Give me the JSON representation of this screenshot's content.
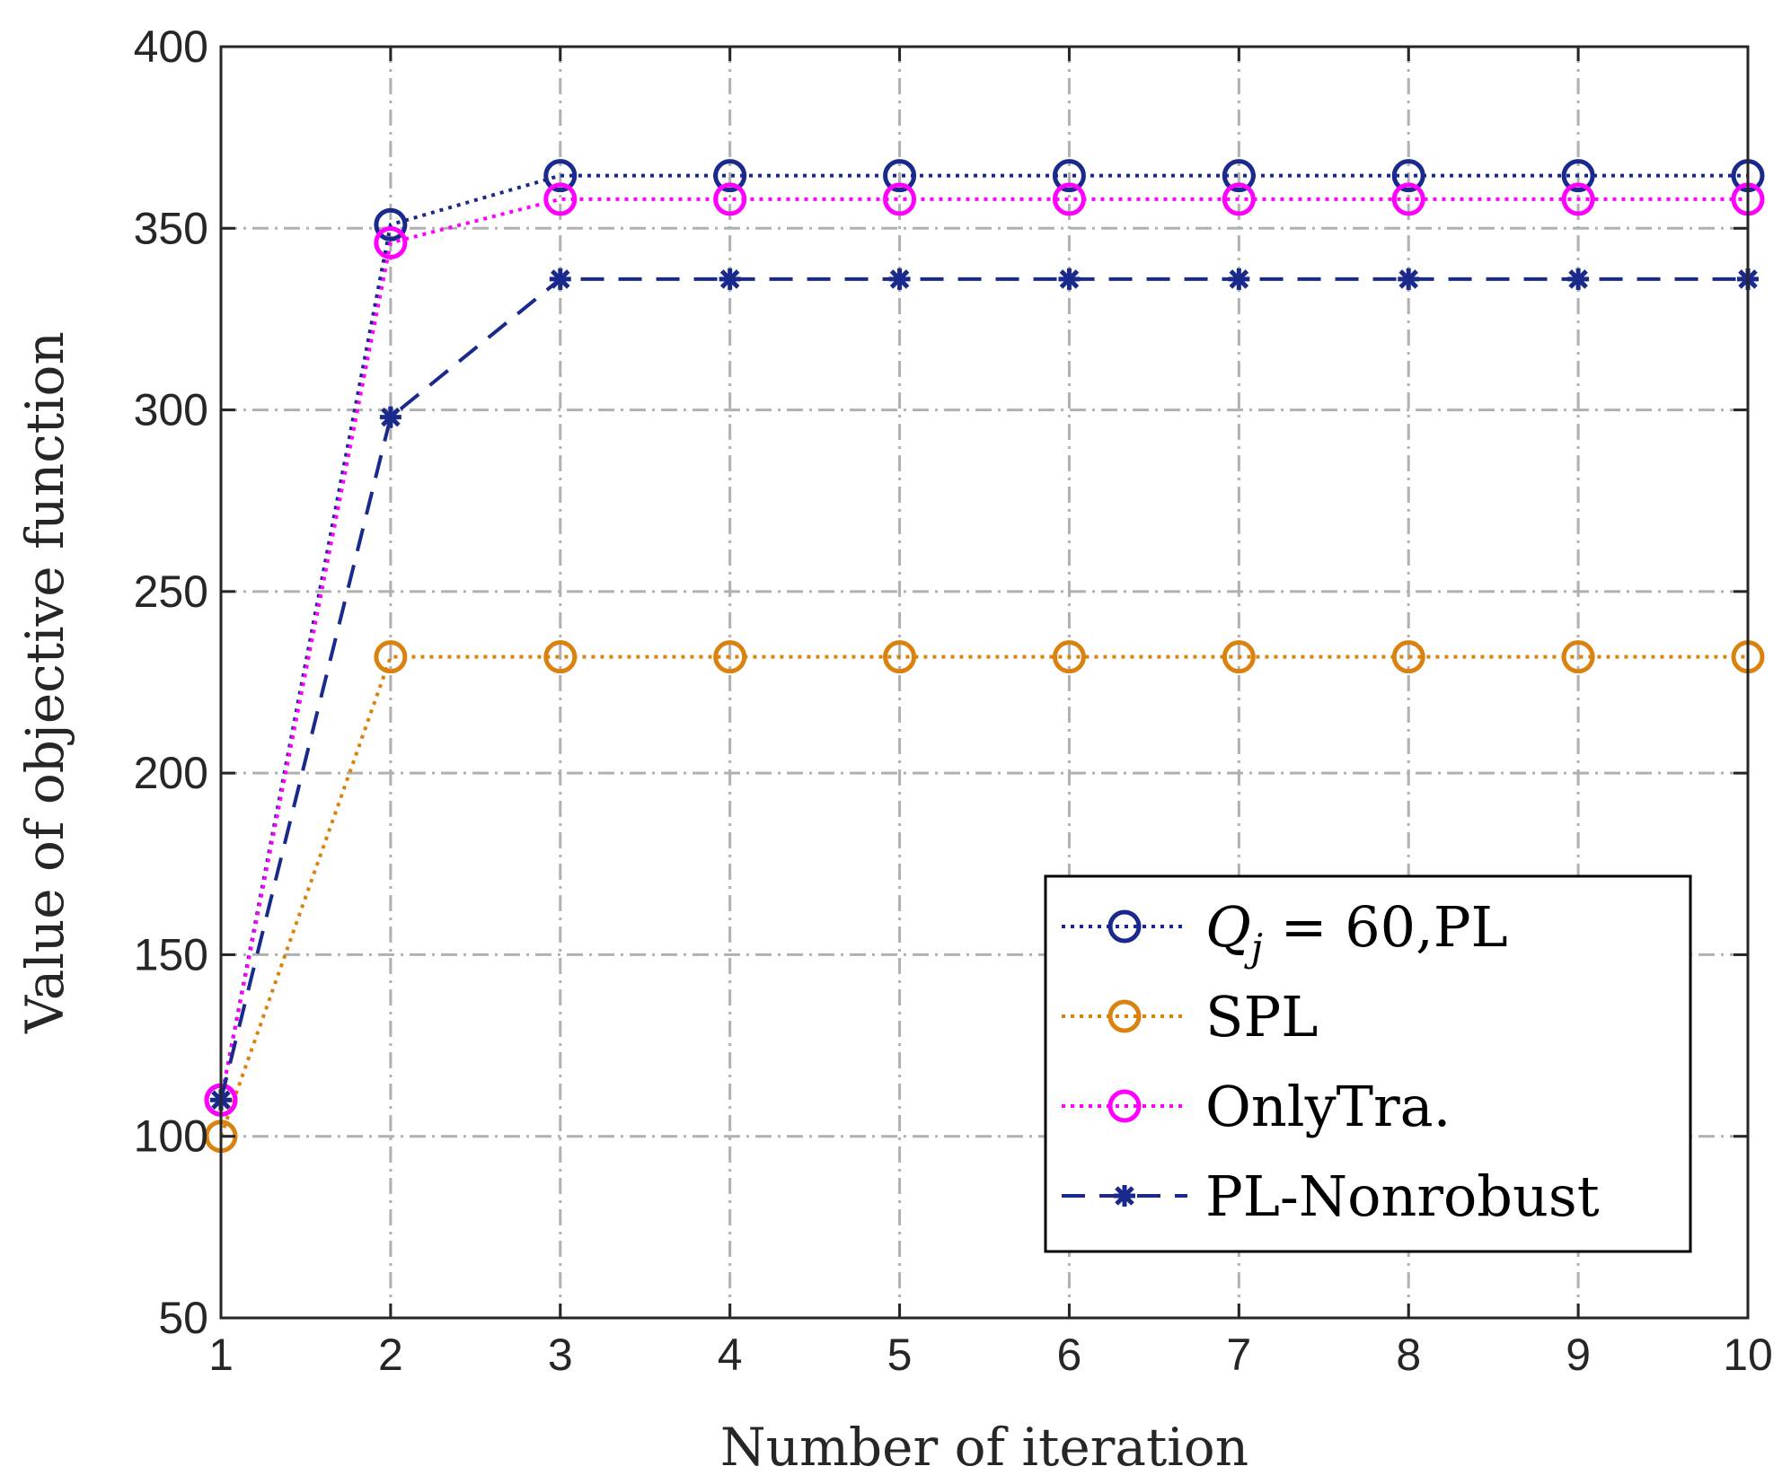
{
  "chart_data": {
    "type": "line",
    "xlabel": "Number of iteration",
    "ylabel": "Value of objective function",
    "xlim": [
      1,
      10
    ],
    "ylim": [
      50,
      400
    ],
    "xticks": [
      1,
      2,
      3,
      4,
      5,
      6,
      7,
      8,
      9,
      10
    ],
    "yticks": [
      50,
      100,
      150,
      200,
      250,
      300,
      350,
      400
    ],
    "grid": true,
    "legend_position": "bottom-right",
    "x": [
      1,
      2,
      3,
      4,
      5,
      6,
      7,
      8,
      9,
      10
    ],
    "series": [
      {
        "name": "Q_j = 60,PL",
        "legend_var": "Q",
        "legend_sub": "j",
        "legend_rest": " = 60,PL",
        "color": "#1a2a8c",
        "marker": "circle",
        "line": "dotted",
        "values": [
          110,
          351,
          364.5,
          364.5,
          364.5,
          364.5,
          364.5,
          364.5,
          364.5,
          364.5
        ]
      },
      {
        "name": "SPL",
        "color": "#d9820f",
        "marker": "circle",
        "line": "dotted",
        "values": [
          100,
          232,
          232,
          232,
          232,
          232,
          232,
          232,
          232,
          232
        ]
      },
      {
        "name": "OnlyTra.",
        "color": "#ff00ff",
        "marker": "circle",
        "line": "dotted",
        "values": [
          110,
          346,
          358,
          358,
          358,
          358,
          358,
          358,
          358,
          358
        ]
      },
      {
        "name": "PL-Nonrobust",
        "color": "#1a2a8c",
        "marker": "asterisk",
        "line": "dashed",
        "values": [
          110,
          298,
          336,
          336,
          336,
          336,
          336,
          336,
          336,
          336
        ]
      }
    ]
  }
}
